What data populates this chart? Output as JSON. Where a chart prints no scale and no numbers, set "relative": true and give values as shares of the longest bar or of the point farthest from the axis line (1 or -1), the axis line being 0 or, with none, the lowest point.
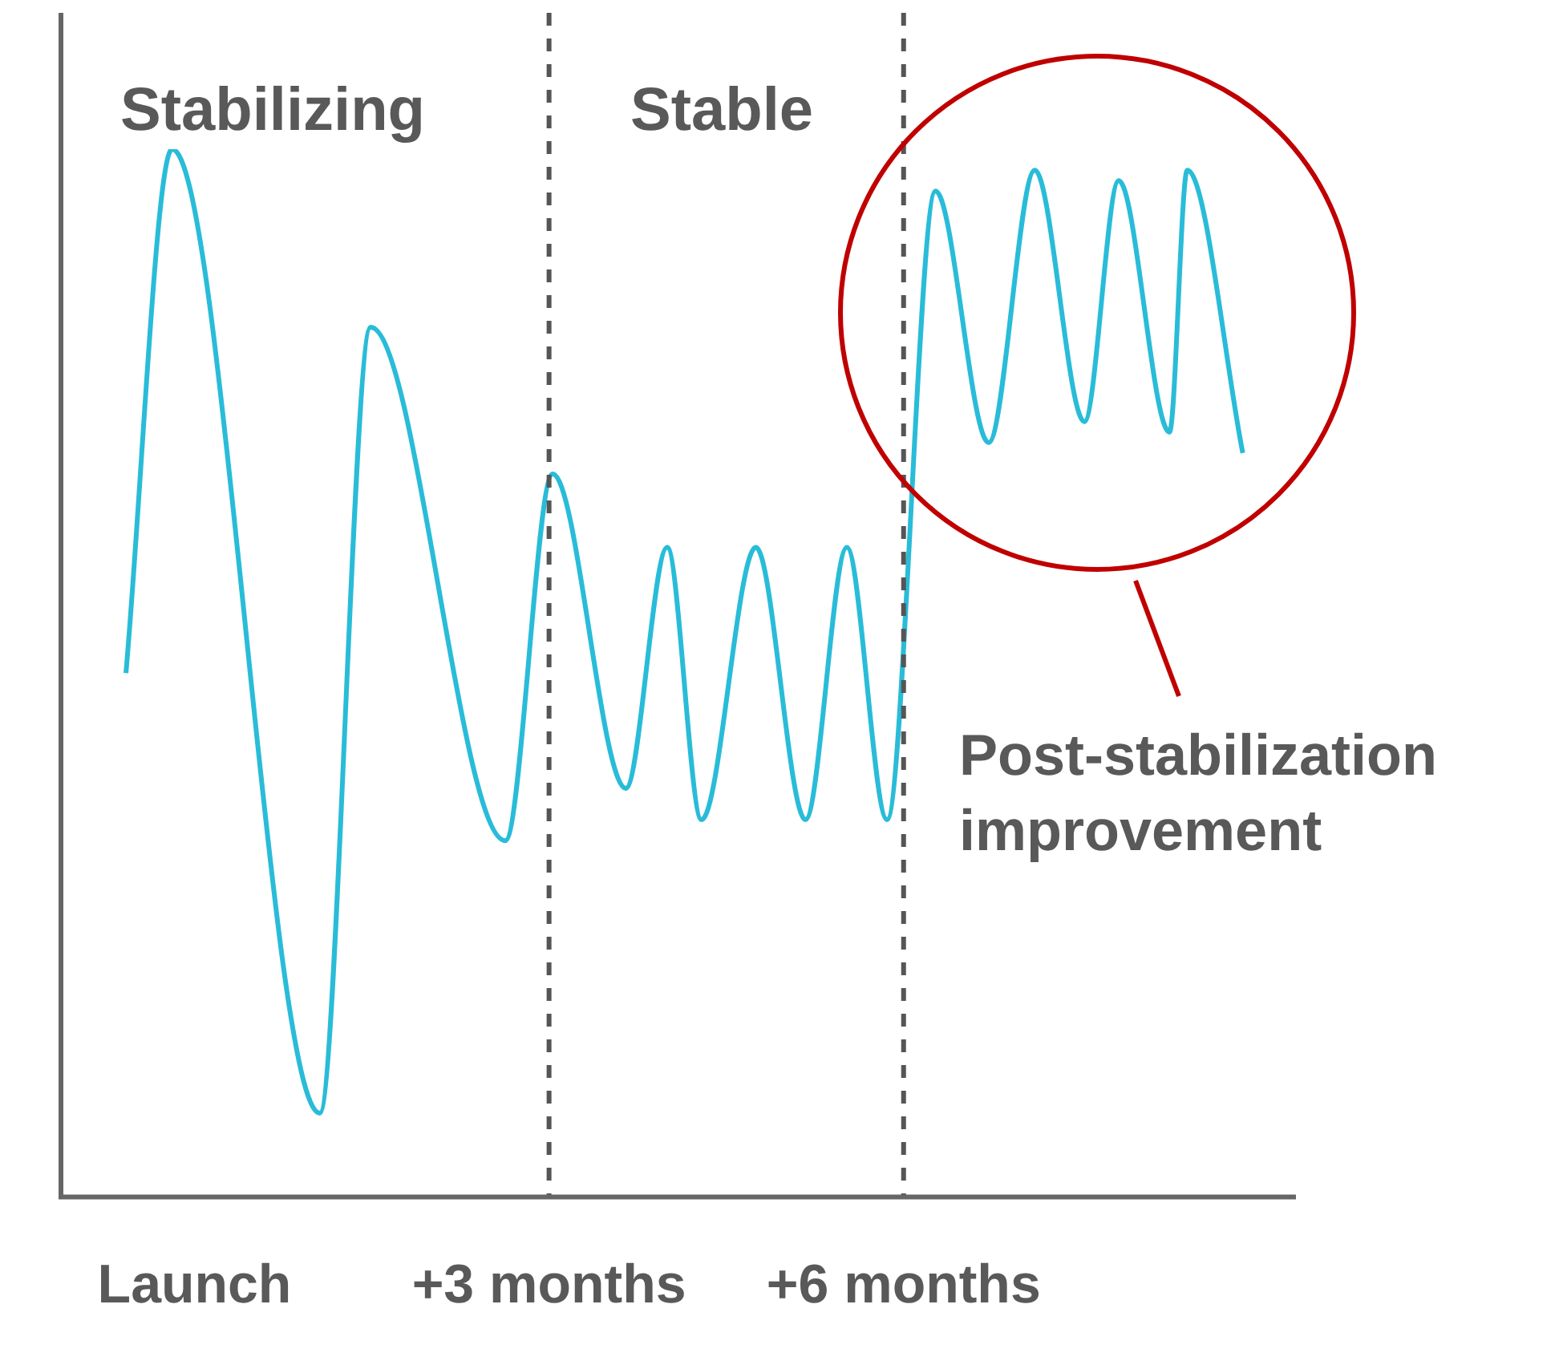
{
  "chart_data": {
    "type": "line",
    "relative": true,
    "color": "#29bcd8",
    "marker": "none",
    "line_style": "solid",
    "x": [
      -0.58,
      -0.19,
      1.06,
      1.49,
      2.63,
      3.03,
      3.65,
      4.0,
      4.29,
      4.75,
      5.17,
      5.52,
      5.86,
      6.27,
      6.72,
      7.11,
      7.53,
      7.82,
      8.25,
      8.4,
      8.87
    ],
    "values": [
      0.5,
      1,
      0.08,
      0.83,
      0.34,
      0.69,
      0.39,
      0.62,
      0.36,
      0.62,
      0.36,
      0.62,
      0.36,
      0.96,
      0.72,
      0.98,
      0.74,
      0.97,
      0.73,
      0.98,
      0.71
    ],
    "xlim": [
      -1.13,
      9.32
    ],
    "xticks": [
      {
        "value": 0,
        "label": "Launch"
      },
      {
        "value": 3,
        "label": "+3 months"
      },
      {
        "value": 6,
        "label": "+6 months"
      }
    ],
    "ref_lines": [
      {
        "axis": "x",
        "value": 3,
        "color": "#555555",
        "line_style": "dashed"
      },
      {
        "axis": "x",
        "value": 6,
        "color": "#555555",
        "line_style": "dashed"
      }
    ],
    "annotations": [
      "Stabilizing",
      "Stable",
      "Post-stabilization improvement"
    ]
  }
}
